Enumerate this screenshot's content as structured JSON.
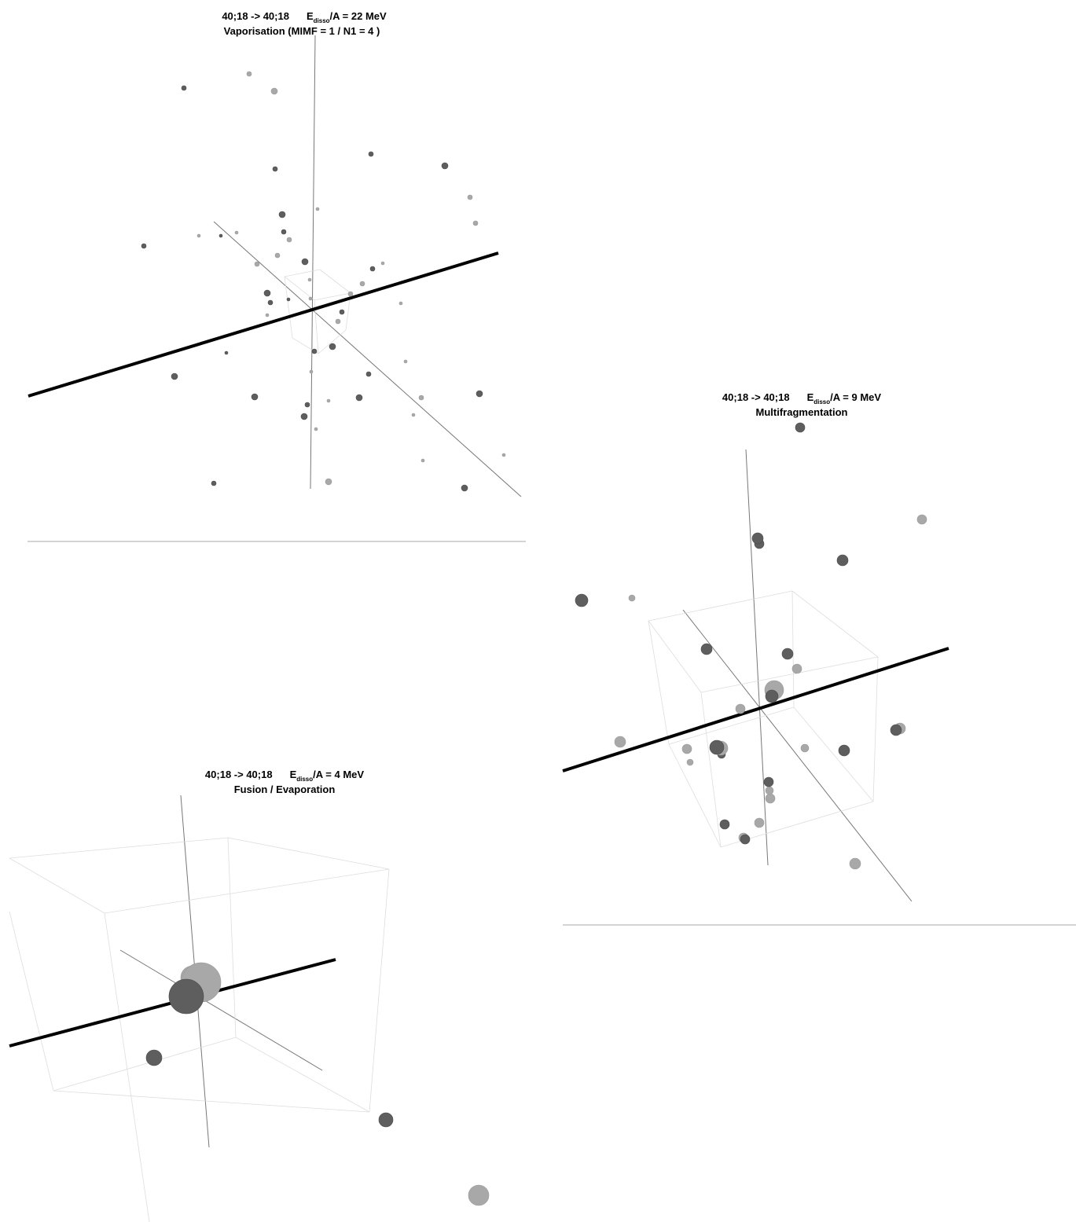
{
  "panels": [
    {
      "reaction": "40;18 -> 40;18",
      "energy_symbol": "E",
      "energy_subscript": "disso",
      "energy_value": "/A = 22 MeV",
      "subtitle": "Vaporisation (MIMF = 1 / N1 = 4 )"
    },
    {
      "reaction": "40;18 -> 40;18",
      "energy_symbol": "E",
      "energy_subscript": "disso",
      "energy_value": "/A = 9 MeV",
      "subtitle": "Multifragmentation"
    },
    {
      "reaction": "40;18 -> 40;18",
      "energy_symbol": "E",
      "energy_subscript": "disso",
      "energy_value": "/A = 4 MeV",
      "subtitle": "Fusion / Evaporation"
    }
  ]
}
